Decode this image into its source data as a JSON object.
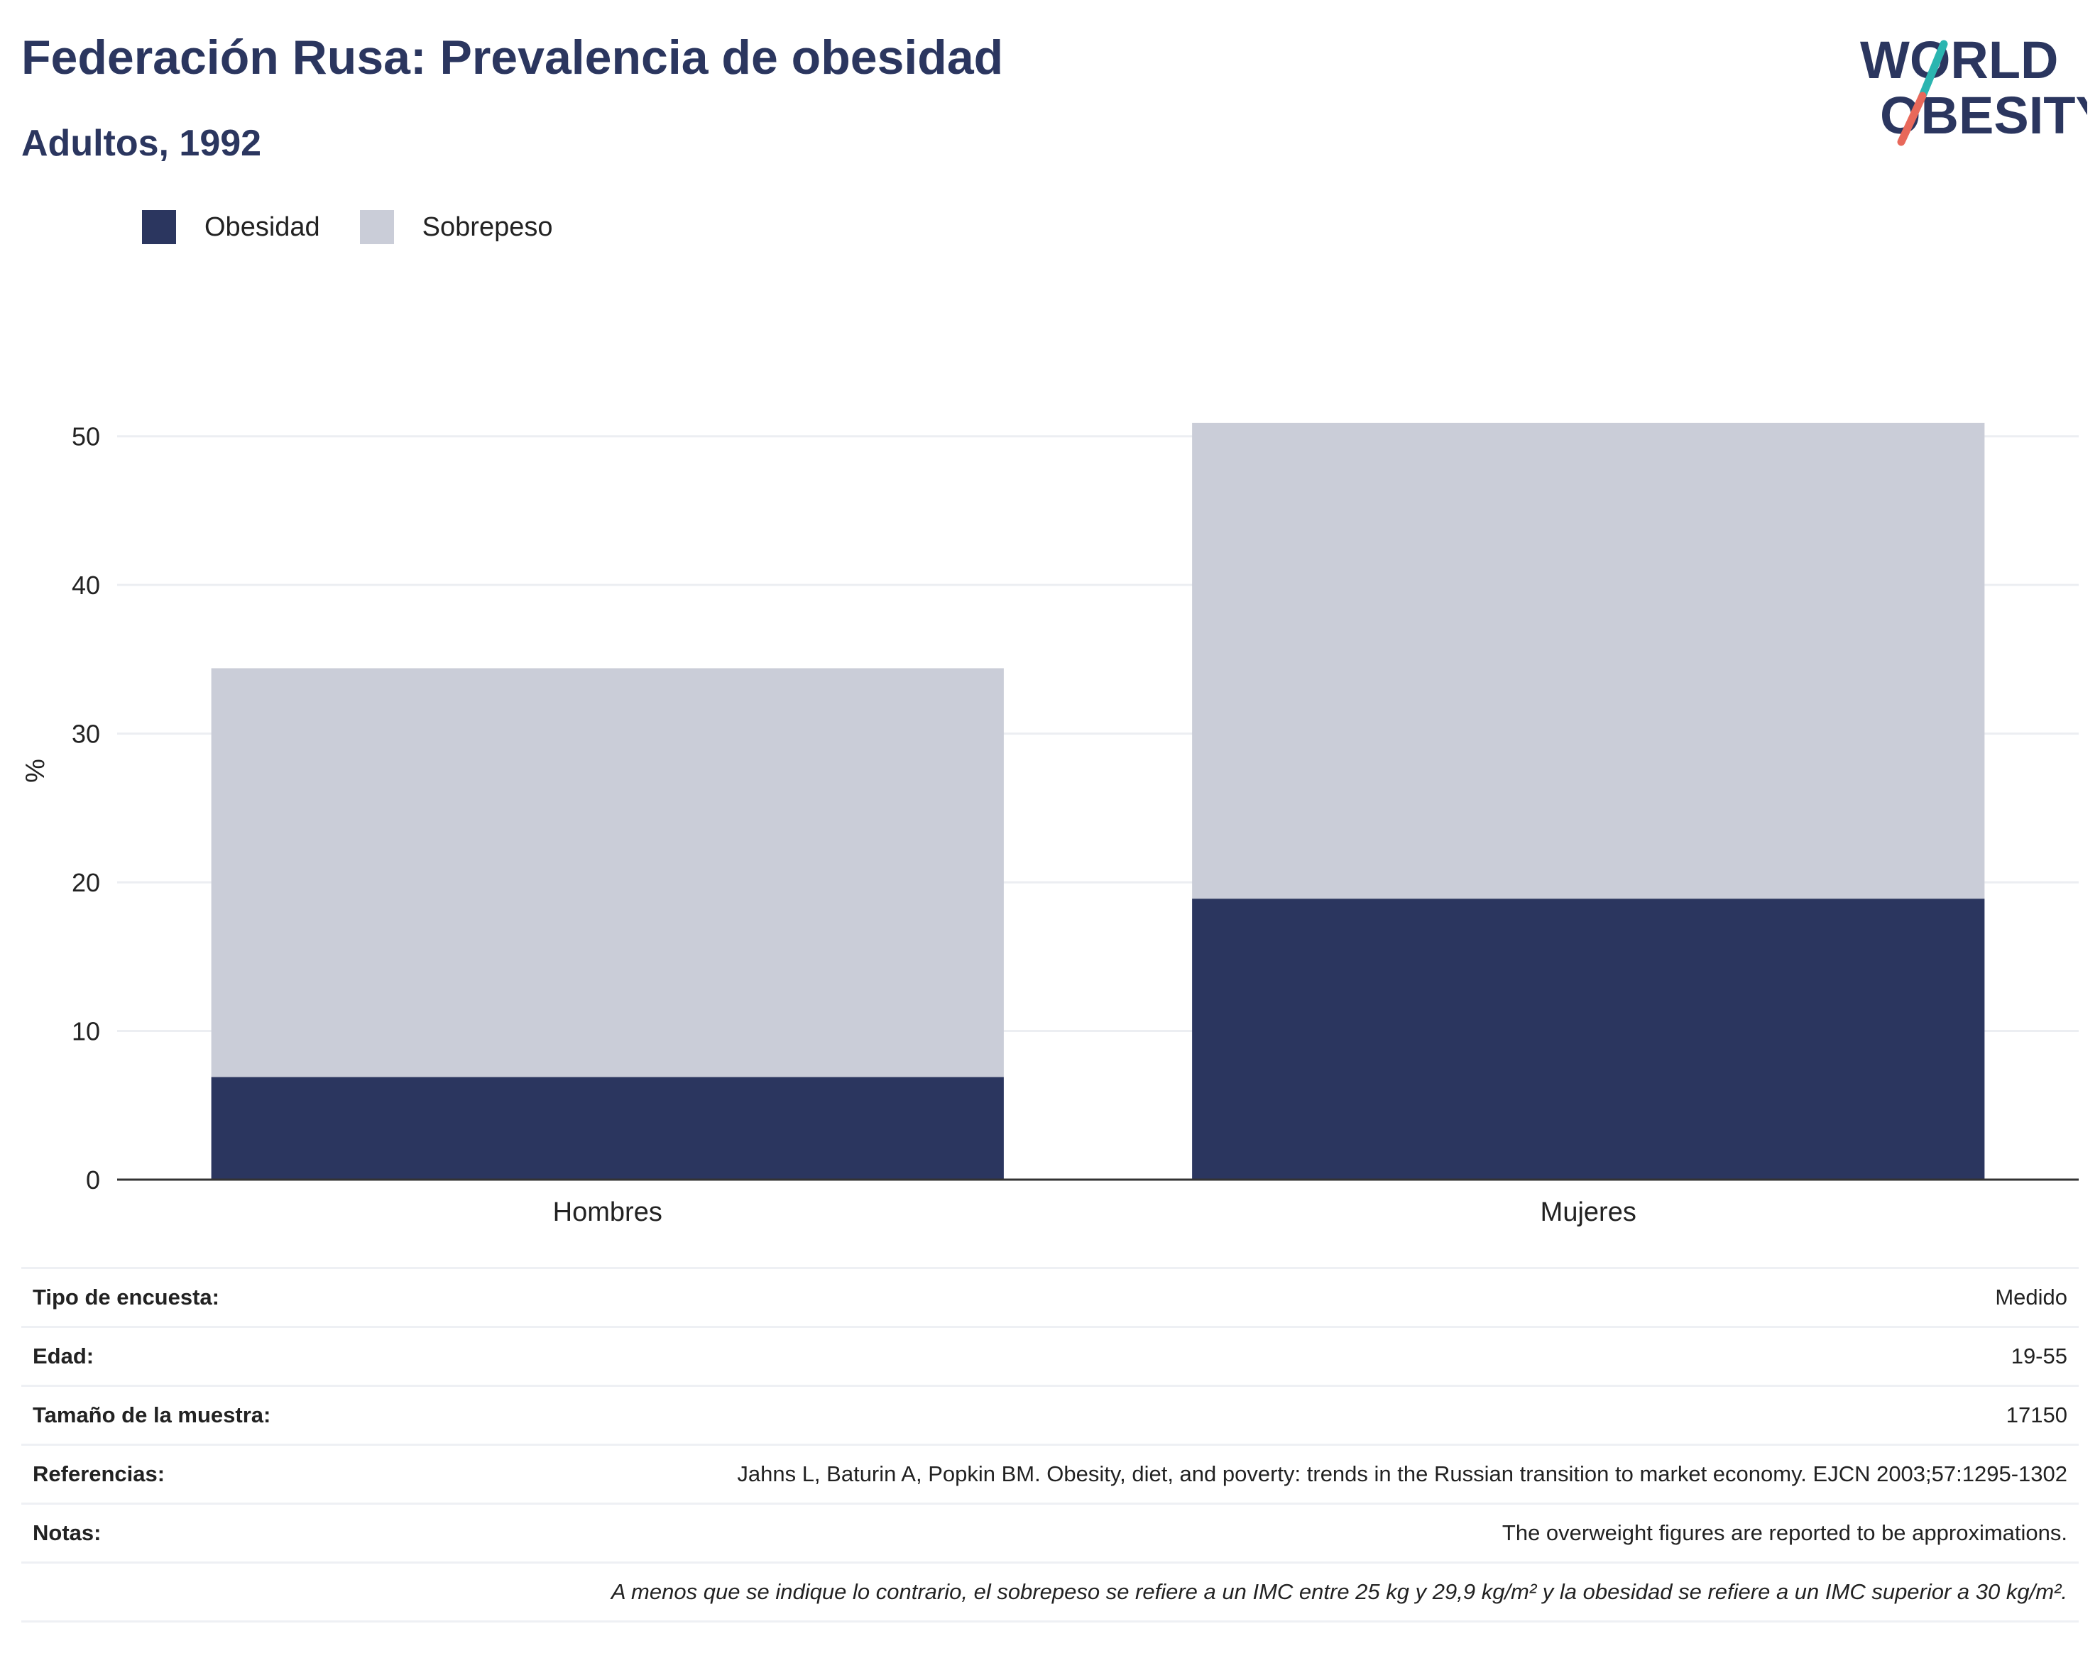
{
  "title": "Federación Rusa: Prevalencia de obesidad",
  "subtitle": "Adultos, 1992",
  "logo": {
    "line1": "WORLD",
    "line2": "OBESITY",
    "accent_teal": "#2bb5b0",
    "accent_red": "#e8685a",
    "text_color": "#2b365f"
  },
  "legend": [
    {
      "label": "Obesidad",
      "color": "#2b365f"
    },
    {
      "label": "Sobrepeso",
      "color": "#cacdd8"
    }
  ],
  "chart_data": {
    "type": "bar",
    "stacked": true,
    "categories": [
      "Hombres",
      "Mujeres"
    ],
    "series": [
      {
        "name": "Obesidad",
        "color": "#2b365f",
        "values": [
          6.9,
          18.9
        ]
      },
      {
        "name": "Sobrepeso",
        "color": "#cacdd8",
        "values": [
          27.5,
          32.0
        ]
      }
    ],
    "ylabel": "%",
    "xlabel": "",
    "ylim": [
      0,
      55
    ],
    "yticks": [
      0,
      10,
      20,
      30,
      40,
      50
    ],
    "grid": true,
    "legend_position": "top-left"
  },
  "info": [
    {
      "key": "Tipo de encuesta:",
      "value": "Medido"
    },
    {
      "key": "Edad:",
      "value": "19-55"
    },
    {
      "key": "Tamaño de la muestra:",
      "value": "17150"
    },
    {
      "key": "Referencias:",
      "value": "Jahns L, Baturin A, Popkin BM. Obesity, diet, and poverty: trends in the Russian transition to market economy. EJCN 2003;57:1295-1302"
    },
    {
      "key": "Notas:",
      "value": "The overweight figures are reported to be approximations."
    }
  ],
  "footnote": "A menos que se indique lo contrario, el sobrepeso se refiere a un IMC entre 25 kg y 29,9 kg/m² y la obesidad se refiere a un IMC superior a 30 kg/m²."
}
